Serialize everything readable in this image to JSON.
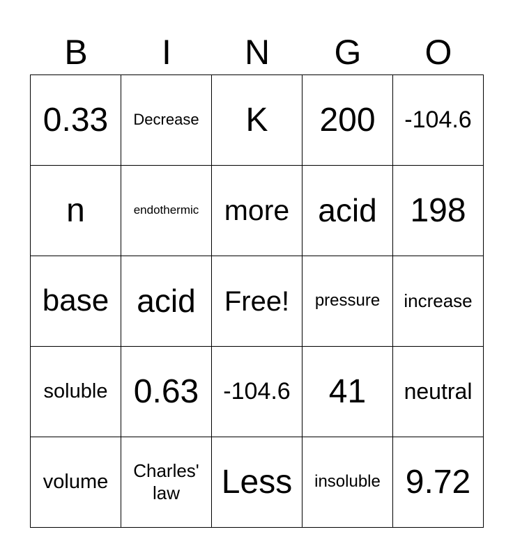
{
  "header": [
    "B",
    "I",
    "N",
    "G",
    "O"
  ],
  "cells": [
    [
      "0.33",
      "Decrease",
      "K",
      "200",
      "-104.6"
    ],
    [
      "n",
      "endothermic",
      "more",
      "acid",
      "198"
    ],
    [
      "base",
      "acid",
      "Free!",
      "pressure",
      "increase"
    ],
    [
      "soluble",
      "0.63",
      "-104.6",
      "41",
      "neutral"
    ],
    [
      "volume",
      "Charles' law",
      "Less",
      "insoluble",
      "9.72"
    ]
  ]
}
